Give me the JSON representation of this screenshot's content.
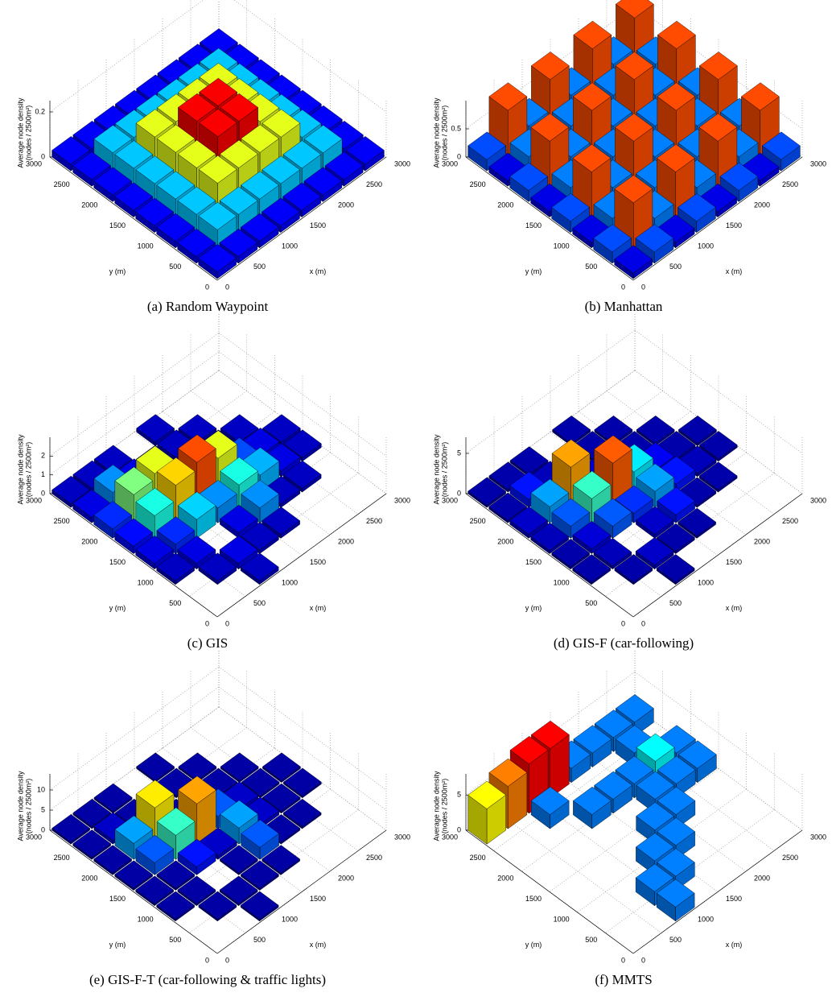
{
  "chart_data": [
    {
      "type": "bar3d",
      "title": "(a)  Random Waypoint",
      "xlabel": "x (m)",
      "ylabel": "y (m)",
      "zlabel": [
        "Average node density",
        "(nodes / 2500m²)"
      ],
      "colormap": "jet",
      "grid": true,
      "xlim": [
        0,
        3000
      ],
      "ylim": [
        0,
        3000
      ],
      "xticks": [
        0,
        500,
        1000,
        1500,
        2000,
        2500,
        3000
      ],
      "yticks": [
        0,
        500,
        1000,
        1500,
        2000,
        2500,
        3000
      ],
      "zlim": [
        0,
        0.25
      ],
      "zticks": [
        0,
        0.2
      ],
      "x": [
        187.5,
        562.5,
        937.5,
        1312.5,
        1687.5,
        2062.5,
        2437.5,
        2812.5
      ],
      "y": [
        187.5,
        562.5,
        937.5,
        1312.5,
        1687.5,
        2062.5,
        2437.5,
        2812.5
      ],
      "values": [
        [
          0.03,
          0.03,
          0.03,
          0.03,
          0.03,
          0.03,
          0.03,
          0.03
        ],
        [
          0.03,
          0.08,
          0.08,
          0.08,
          0.08,
          0.08,
          0.08,
          0.03
        ],
        [
          0.03,
          0.08,
          0.15,
          0.15,
          0.15,
          0.15,
          0.08,
          0.03
        ],
        [
          0.03,
          0.08,
          0.15,
          0.22,
          0.22,
          0.15,
          0.08,
          0.03
        ],
        [
          0.03,
          0.08,
          0.15,
          0.22,
          0.22,
          0.15,
          0.08,
          0.03
        ],
        [
          0.03,
          0.08,
          0.15,
          0.15,
          0.15,
          0.15,
          0.08,
          0.03
        ],
        [
          0.03,
          0.08,
          0.08,
          0.08,
          0.08,
          0.08,
          0.08,
          0.03
        ],
        [
          0.03,
          0.03,
          0.03,
          0.03,
          0.03,
          0.03,
          0.03,
          0.03
        ]
      ]
    },
    {
      "type": "bar3d",
      "title": "(b)  Manhattan",
      "xlabel": "x (m)",
      "ylabel": "y (m)",
      "zlabel": [
        "Average node density",
        "(nodes / 2500m²)"
      ],
      "colormap": "jet",
      "grid": true,
      "xlim": [
        0,
        3000
      ],
      "ylim": [
        0,
        3000
      ],
      "xticks": [
        0,
        500,
        1000,
        1500,
        2000,
        2500,
        3000
      ],
      "yticks": [
        0,
        500,
        1000,
        1500,
        2000,
        2500,
        3000
      ],
      "zlim": [
        0,
        1
      ],
      "zticks": [
        0,
        0.5
      ],
      "x": [
        187.5,
        562.5,
        937.5,
        1312.5,
        1687.5,
        2062.5,
        2437.5,
        2812.5
      ],
      "y": [
        187.5,
        562.5,
        937.5,
        1312.5,
        1687.5,
        2062.5,
        2437.5,
        2812.5
      ],
      "values": [
        [
          0.1,
          0.2,
          0.1,
          0.2,
          0.1,
          0.2,
          0.1,
          0.2
        ],
        [
          0.2,
          0.8,
          0.25,
          0.8,
          0.25,
          0.8,
          0.25,
          0.8
        ],
        [
          0.1,
          0.25,
          0.15,
          0.25,
          0.15,
          0.25,
          0.15,
          0.25
        ],
        [
          0.2,
          0.8,
          0.25,
          0.8,
          0.25,
          0.8,
          0.25,
          0.8
        ],
        [
          0.1,
          0.25,
          0.15,
          0.25,
          0.15,
          0.25,
          0.15,
          0.25
        ],
        [
          0.2,
          0.8,
          0.25,
          0.8,
          0.25,
          0.8,
          0.25,
          0.8
        ],
        [
          0.1,
          0.25,
          0.15,
          0.25,
          0.15,
          0.25,
          0.15,
          0.25
        ],
        [
          0.2,
          0.8,
          0.25,
          0.8,
          0.25,
          0.8,
          0.25,
          0.8
        ]
      ]
    },
    {
      "type": "bar3d",
      "title": "(c)  GIS",
      "xlabel": "x (m)",
      "ylabel": "y (m)",
      "zlabel": [
        "Average node density",
        "(nodes / 2500m²)"
      ],
      "colormap": "jet",
      "grid": true,
      "xlim": [
        0,
        3000
      ],
      "ylim": [
        0,
        3000
      ],
      "xticks": [
        0,
        500,
        1000,
        1500,
        2000,
        2500,
        3000
      ],
      "yticks": [
        0,
        500,
        1000,
        1500,
        2000,
        2500,
        3000
      ],
      "zlim": [
        0,
        3
      ],
      "zticks": [
        0,
        1,
        2
      ],
      "x": [
        187.5,
        562.5,
        937.5,
        1312.5,
        1687.5,
        2062.5,
        2437.5,
        2812.5
      ],
      "y": [
        187.5,
        562.5,
        937.5,
        1312.5,
        1687.5,
        2062.5,
        2437.5,
        2812.5
      ],
      "values": [
        [
          0,
          0,
          0.2,
          0,
          0,
          0,
          0,
          0
        ],
        [
          0,
          0.2,
          0.3,
          0.2,
          0.2,
          0,
          0,
          0
        ],
        [
          0.2,
          0.3,
          0,
          0.3,
          0.8,
          0.2,
          0.2,
          0
        ],
        [
          0.3,
          0.5,
          1.0,
          0.8,
          1.2,
          0.9,
          0.3,
          0.2
        ],
        [
          0.4,
          1.2,
          2.0,
          2.4,
          1.8,
          0.6,
          0.3,
          0.2
        ],
        [
          0.5,
          1.5,
          1.8,
          0.4,
          0.3,
          0.2,
          0.2,
          0
        ],
        [
          0.3,
          0.8,
          0.3,
          0.2,
          0.2,
          0.2,
          0,
          0
        ],
        [
          0.2,
          0.2,
          0.2,
          0,
          0.2,
          0,
          0,
          0
        ]
      ]
    },
    {
      "type": "bar3d",
      "title": "(d)  GIS-F (car-following)",
      "xlabel": "x (m)",
      "ylabel": "y (m)",
      "zlabel": [
        "Average node density",
        "(nodes / 2500m²)"
      ],
      "colormap": "jet",
      "grid": true,
      "xlim": [
        0,
        3000
      ],
      "ylim": [
        0,
        3000
      ],
      "xticks": [
        0,
        500,
        1000,
        1500,
        2000,
        2500,
        3000
      ],
      "yticks": [
        0,
        500,
        1000,
        1500,
        2000,
        2500,
        3000
      ],
      "zlim": [
        0,
        7
      ],
      "zticks": [
        0,
        5
      ],
      "x": [
        187.5,
        562.5,
        937.5,
        1312.5,
        1687.5,
        2062.5,
        2437.5,
        2812.5
      ],
      "y": [
        187.5,
        562.5,
        937.5,
        1312.5,
        1687.5,
        2062.5,
        2437.5,
        2812.5
      ],
      "values": [
        [
          0,
          0,
          0.3,
          0,
          0,
          0,
          0,
          0
        ],
        [
          0,
          0.3,
          0.5,
          0.3,
          0.3,
          0,
          0,
          0
        ],
        [
          0.3,
          0.4,
          0,
          0.5,
          1.0,
          0.3,
          0.3,
          0
        ],
        [
          0.3,
          0.6,
          1.5,
          1.2,
          2.0,
          1.0,
          0.4,
          0.3
        ],
        [
          0.4,
          1.5,
          3.0,
          5.5,
          2.5,
          0.8,
          0.3,
          0.3
        ],
        [
          0.5,
          2.0,
          5.0,
          0.6,
          0.4,
          0.3,
          0.3,
          0
        ],
        [
          0.3,
          1.0,
          0.4,
          0.3,
          0.3,
          0.3,
          0,
          0
        ],
        [
          0.3,
          0.3,
          0.3,
          0,
          0.3,
          0,
          0,
          0
        ]
      ]
    },
    {
      "type": "bar3d",
      "title": "(e)  GIS-F-T (car-following & traffic lights)",
      "xlabel": "x (m)",
      "ylabel": "y (m)",
      "zlabel": [
        "Average node density",
        "(nodes / 2500m²)"
      ],
      "colormap": "jet",
      "grid": true,
      "xlim": [
        0,
        3000
      ],
      "ylim": [
        0,
        3000
      ],
      "xticks": [
        0,
        500,
        1000,
        1500,
        2000,
        2500,
        3000
      ],
      "yticks": [
        0,
        500,
        1000,
        1500,
        2000,
        2500,
        3000
      ],
      "zlim": [
        0,
        14
      ],
      "zticks": [
        0,
        5,
        10
      ],
      "x": [
        187.5,
        562.5,
        937.5,
        1312.5,
        1687.5,
        2062.5,
        2437.5,
        2812.5
      ],
      "y": [
        187.5,
        562.5,
        937.5,
        1312.5,
        1687.5,
        2062.5,
        2437.5,
        2812.5
      ],
      "values": [
        [
          0,
          0,
          0.5,
          0,
          0,
          0,
          0,
          0
        ],
        [
          0,
          0.5,
          0.5,
          0.5,
          0.5,
          0,
          0,
          0
        ],
        [
          0.5,
          0.5,
          0,
          0.5,
          3,
          0.5,
          0.5,
          0
        ],
        [
          0.5,
          0.5,
          2,
          1,
          4,
          1,
          0.5,
          0.5
        ],
        [
          0.5,
          3,
          6,
          10,
          3,
          1,
          0.5,
          0.5
        ],
        [
          0.5,
          4,
          9,
          0.5,
          0.5,
          0.5,
          0.5,
          0
        ],
        [
          0.5,
          1,
          0.5,
          0.5,
          0.5,
          0.5,
          0,
          0
        ],
        [
          0.5,
          0.5,
          0.5,
          0,
          0.5,
          0,
          0,
          0
        ]
      ]
    },
    {
      "type": "bar3d",
      "title": "(f)  MMTS",
      "xlabel": "x (m)",
      "ylabel": "y (m)",
      "zlabel": [
        "Average node density",
        "(nodes / 2500m²)"
      ],
      "colormap": "jet",
      "grid": true,
      "xlim": [
        0,
        3000
      ],
      "ylim": [
        0,
        3000
      ],
      "xticks": [
        0,
        500,
        1000,
        1500,
        2000,
        2500,
        3000
      ],
      "yticks": [
        0,
        500,
        1000,
        1500,
        2000,
        2500,
        3000
      ],
      "zlim": [
        0,
        8
      ],
      "zticks": [
        0,
        5
      ],
      "x": [
        187.5,
        562.5,
        937.5,
        1312.5,
        1687.5,
        2062.5,
        2437.5,
        2812.5
      ],
      "y": [
        187.5,
        562.5,
        937.5,
        1312.5,
        1687.5,
        2062.5,
        2437.5,
        2812.5
      ],
      "values": [
        [
          0,
          0,
          2,
          0,
          0,
          0,
          0,
          0
        ],
        [
          0,
          0,
          2,
          2,
          0,
          0,
          0,
          0
        ],
        [
          0,
          0,
          0,
          2,
          2,
          0,
          0,
          0
        ],
        [
          0,
          0,
          0,
          0,
          2,
          2,
          0,
          0
        ],
        [
          0,
          0,
          0,
          0,
          0,
          2,
          2,
          2
        ],
        [
          0,
          0,
          0,
          2,
          2,
          2,
          3,
          2
        ],
        [
          0,
          0,
          2,
          0,
          0,
          0,
          2,
          0
        ],
        [
          5,
          6,
          7,
          7,
          2,
          2,
          2,
          2
        ]
      ]
    }
  ]
}
